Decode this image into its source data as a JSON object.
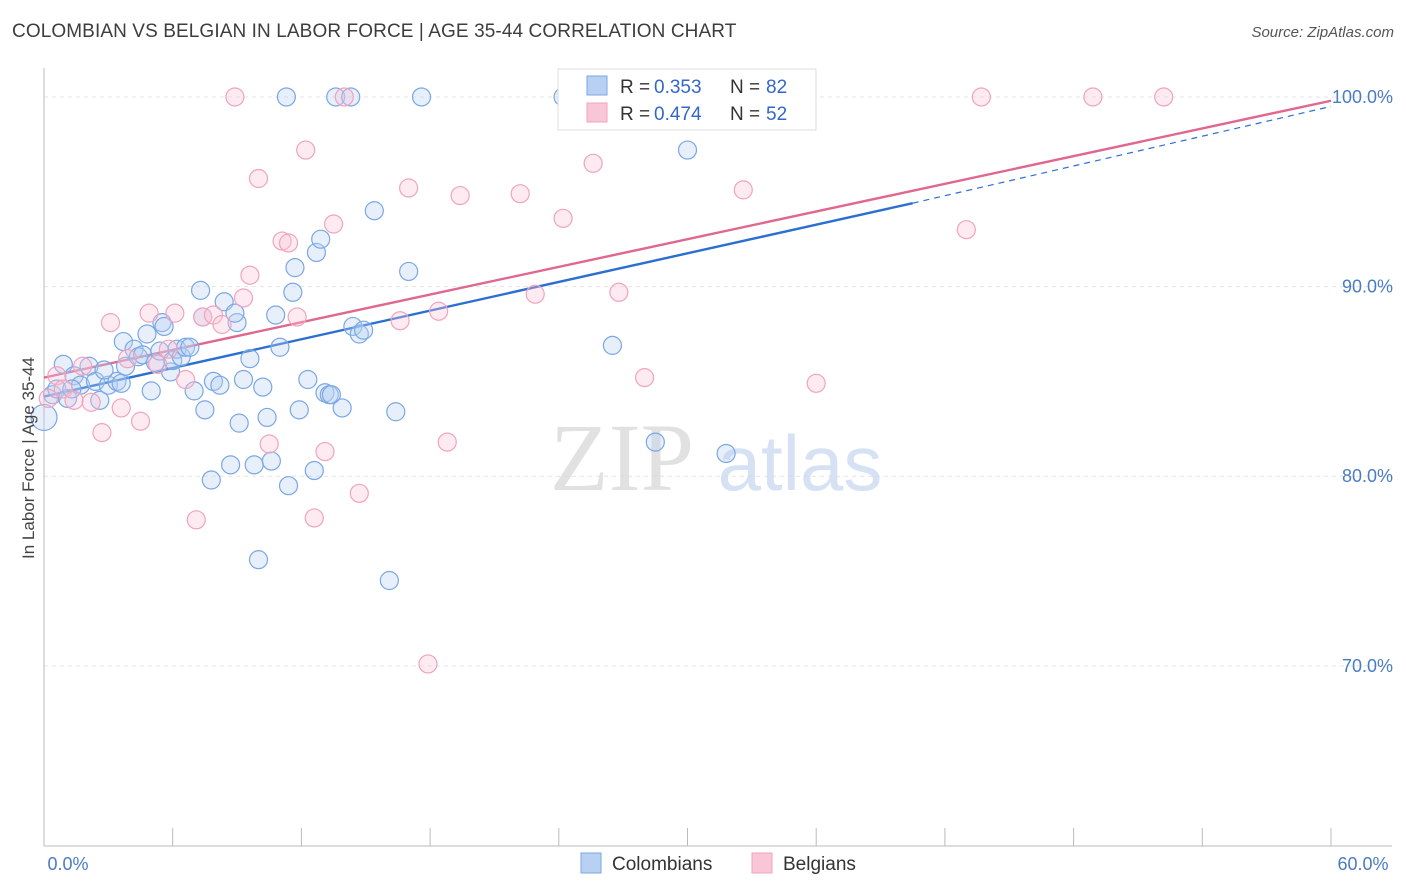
{
  "header": {
    "title": "COLOMBIAN VS BELGIAN IN LABOR FORCE | AGE 35-44 CORRELATION CHART",
    "source": "Source: ZipAtlas.com"
  },
  "watermark": {
    "zip": "ZIP",
    "atlas": "atlas"
  },
  "legend_top": {
    "r_label": "R =",
    "n_label": "N =",
    "rows": [
      {
        "r": "0.353",
        "n": "82"
      },
      {
        "r": "0.474",
        "n": "52"
      }
    ]
  },
  "chart_data": {
    "type": "scatter",
    "title": "COLOMBIAN VS BELGIAN IN LABOR FORCE | AGE 35-44 CORRELATION CHART",
    "xlabel": "",
    "ylabel": "In Labor Force | Age 35-44",
    "xlim": [
      0,
      60
    ],
    "ylim": [
      60.5,
      101
    ],
    "x_tick_labels": [
      "0.0%",
      "60.0%"
    ],
    "y_ticks": [
      70,
      80,
      90,
      100
    ],
    "y_tick_labels": [
      "70.0%",
      "80.0%",
      "90.0%",
      "100.0%"
    ],
    "grid": true,
    "legend_placement": "top-center",
    "colors": {
      "Colombians": "#7aa7e6",
      "Belgians": "#f1a3bd",
      "Colombians_line": "#2a6fd1",
      "Belgians_line": "#e0678f"
    },
    "series": [
      {
        "name": "Colombians",
        "r": 0.353,
        "n": 82,
        "trend": {
          "x": [
            0.0,
            40.5
          ],
          "y": [
            84.2,
            94.4
          ],
          "dashed_to": [
            60.0,
            99.5
          ]
        },
        "points": [
          [
            0.0,
            83.1
          ],
          [
            0.4,
            84.3
          ],
          [
            0.6,
            84.6
          ],
          [
            0.9,
            85.9
          ],
          [
            1.1,
            84.1
          ],
          [
            1.4,
            85.3
          ],
          [
            1.7,
            84.8
          ],
          [
            2.1,
            85.8
          ],
          [
            2.4,
            85.0
          ],
          [
            2.6,
            84.0
          ],
          [
            3.0,
            84.8
          ],
          [
            3.4,
            85.0
          ],
          [
            3.6,
            84.9
          ],
          [
            3.7,
            87.1
          ],
          [
            3.8,
            85.8
          ],
          [
            4.2,
            86.7
          ],
          [
            4.4,
            86.3
          ],
          [
            4.6,
            86.4
          ],
          [
            4.8,
            87.5
          ],
          [
            5.0,
            84.5
          ],
          [
            5.2,
            86.0
          ],
          [
            5.4,
            86.6
          ],
          [
            5.5,
            88.1
          ],
          [
            5.6,
            87.9
          ],
          [
            5.9,
            85.5
          ],
          [
            6.0,
            86.1
          ],
          [
            6.2,
            86.7
          ],
          [
            6.4,
            86.3
          ],
          [
            6.6,
            86.8
          ],
          [
            6.8,
            86.8
          ],
          [
            7.0,
            84.5
          ],
          [
            7.3,
            89.8
          ],
          [
            7.4,
            88.4
          ],
          [
            7.5,
            83.5
          ],
          [
            7.8,
            79.8
          ],
          [
            7.9,
            85.0
          ],
          [
            8.2,
            84.8
          ],
          [
            8.4,
            89.2
          ],
          [
            8.7,
            80.6
          ],
          [
            9.0,
            88.1
          ],
          [
            9.1,
            82.8
          ],
          [
            9.3,
            85.1
          ],
          [
            9.6,
            86.2
          ],
          [
            9.8,
            80.6
          ],
          [
            10.0,
            75.6
          ],
          [
            10.2,
            84.7
          ],
          [
            10.4,
            83.1
          ],
          [
            10.6,
            80.8
          ],
          [
            10.8,
            88.5
          ],
          [
            11.0,
            86.8
          ],
          [
            11.4,
            79.5
          ],
          [
            11.6,
            89.7
          ],
          [
            11.7,
            91.0
          ],
          [
            11.9,
            83.5
          ],
          [
            12.3,
            85.1
          ],
          [
            12.6,
            80.3
          ],
          [
            12.7,
            91.8
          ],
          [
            12.9,
            92.5
          ],
          [
            13.1,
            84.4
          ],
          [
            13.3,
            84.3
          ],
          [
            13.4,
            84.3
          ],
          [
            13.6,
            100.0
          ],
          [
            13.9,
            83.6
          ],
          [
            14.4,
            87.9
          ],
          [
            14.7,
            87.5
          ],
          [
            14.9,
            87.7
          ],
          [
            15.4,
            94.0
          ],
          [
            16.1,
            74.5
          ],
          [
            16.4,
            83.4
          ],
          [
            17.0,
            90.8
          ],
          [
            11.3,
            100.0
          ],
          [
            14.3,
            100.0
          ],
          [
            17.6,
            100.0
          ],
          [
            24.2,
            100.0
          ],
          [
            26.5,
            86.9
          ],
          [
            28.5,
            81.8
          ],
          [
            30.0,
            97.2
          ],
          [
            31.2,
            100.0
          ],
          [
            31.8,
            81.2
          ],
          [
            1.3,
            84.6
          ],
          [
            2.8,
            85.6
          ],
          [
            8.9,
            88.6
          ]
        ]
      },
      {
        "name": "Belgians",
        "r": 0.474,
        "n": 52,
        "trend": {
          "x": [
            0.0,
            60.0
          ],
          "y": [
            85.2,
            99.8
          ]
        },
        "points": [
          [
            0.2,
            84.1
          ],
          [
            0.6,
            85.3
          ],
          [
            0.9,
            84.6
          ],
          [
            1.4,
            84.0
          ],
          [
            1.8,
            85.8
          ],
          [
            2.2,
            83.9
          ],
          [
            2.7,
            82.3
          ],
          [
            3.1,
            88.1
          ],
          [
            3.6,
            83.6
          ],
          [
            3.9,
            86.2
          ],
          [
            4.5,
            82.9
          ],
          [
            4.9,
            88.6
          ],
          [
            5.3,
            85.9
          ],
          [
            5.8,
            86.7
          ],
          [
            6.1,
            88.6
          ],
          [
            6.6,
            85.1
          ],
          [
            7.1,
            77.7
          ],
          [
            7.4,
            88.4
          ],
          [
            7.9,
            88.5
          ],
          [
            8.3,
            88.0
          ],
          [
            8.9,
            100.0
          ],
          [
            9.3,
            89.4
          ],
          [
            9.6,
            90.6
          ],
          [
            10.0,
            95.7
          ],
          [
            10.5,
            81.7
          ],
          [
            11.1,
            92.4
          ],
          [
            11.4,
            92.3
          ],
          [
            11.8,
            88.4
          ],
          [
            12.2,
            97.2
          ],
          [
            12.6,
            77.8
          ],
          [
            13.1,
            81.3
          ],
          [
            13.5,
            93.3
          ],
          [
            14.0,
            100.0
          ],
          [
            14.7,
            79.1
          ],
          [
            16.6,
            88.2
          ],
          [
            17.0,
            95.2
          ],
          [
            17.9,
            70.1
          ],
          [
            18.4,
            88.7
          ],
          [
            18.8,
            81.8
          ],
          [
            19.4,
            94.8
          ],
          [
            22.2,
            94.9
          ],
          [
            22.9,
            89.6
          ],
          [
            24.2,
            93.6
          ],
          [
            25.6,
            96.5
          ],
          [
            26.8,
            89.7
          ],
          [
            28.0,
            85.2
          ],
          [
            32.6,
            95.1
          ],
          [
            36.0,
            84.9
          ],
          [
            43.0,
            93.0
          ],
          [
            43.7,
            100.0
          ],
          [
            48.9,
            100.0
          ],
          [
            52.2,
            100.0
          ]
        ]
      }
    ]
  },
  "bottom_legend": [
    "Colombians",
    "Belgians"
  ]
}
